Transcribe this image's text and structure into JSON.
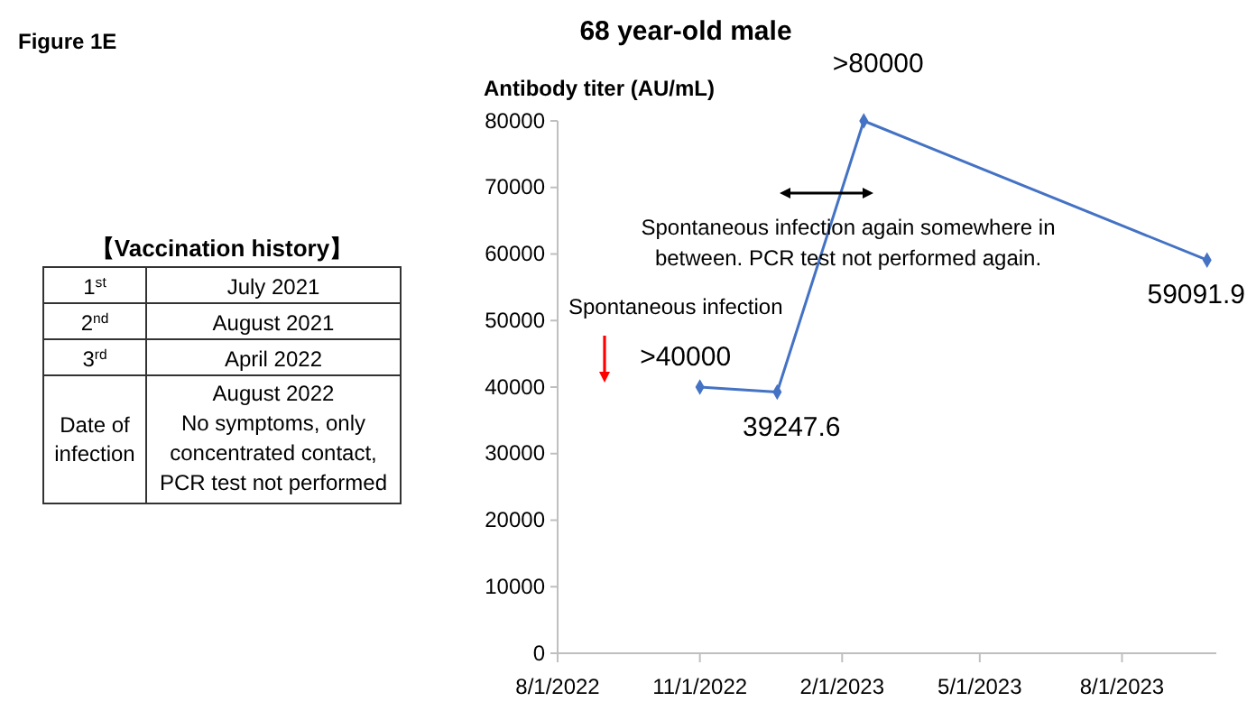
{
  "chart_data": [
    {
      "type": "other",
      "title": "【Vaccination history】",
      "annotations": [
        "1$^{st}$",
        "July 2021",
        "2$^{nd}$",
        "August 2021",
        "3$^{rd}$",
        "April 2022",
        "Date of infection",
        "August 2022\nNo symptoms, only concentrated contact, PCR test not performed"
      ]
    },
    {
      "type": "line",
      "title": "68 year-old male",
      "ylabel": "Antibody titer (AU/mL)",
      "annotations": [
        "Figure 1E",
        "Spontaneous infection",
        "Spontaneous infection again somewhere in between. PCR test not performed again."
      ],
      "x": [
        "2022-11-01",
        "2022-12-21",
        "2023-02-15",
        "2023-09-25"
      ],
      "series": [
        {
          "color": "#4472c4",
          "values": [
            40000,
            39247.6,
            80000,
            59091.9
          ],
          "value_labels": [
            ">40000",
            "39247.6",
            ">80000",
            "59091.9"
          ]
        }
      ],
      "xlim": [
        "2022-08-01",
        "2023-10-01"
      ],
      "xticks": [
        {
          "value": "2022-08-01",
          "label": "8/1/2022"
        },
        {
          "value": "2022-11-01",
          "label": "11/1/2022"
        },
        {
          "value": "2023-02-01",
          "label": "2/1/2023"
        },
        {
          "value": "2023-05-01",
          "label": "5/1/2023"
        },
        {
          "value": "2023-08-01",
          "label": "8/1/2023"
        }
      ],
      "ylim": [
        0,
        80000
      ],
      "yticks": [
        0,
        10000,
        20000,
        30000,
        40000,
        50000,
        60000,
        70000,
        80000
      ],
      "grid": false,
      "marker": "diamond",
      "line_style": "solid"
    }
  ]
}
